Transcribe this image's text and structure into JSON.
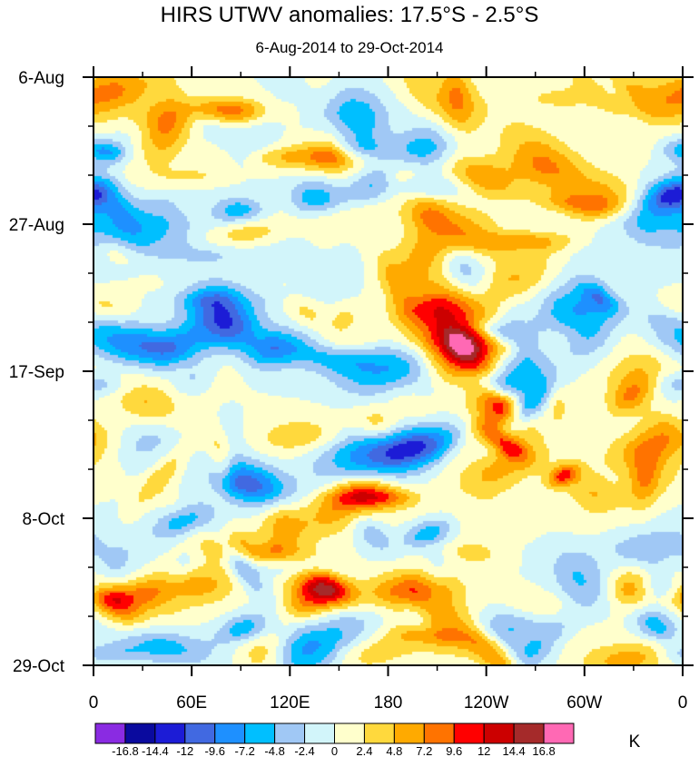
{
  "chart_data": {
    "type": "heatmap",
    "title": "HIRS UTWV anomalies: 17.5°S - 2.5°S",
    "subtitle": "6-Aug-2014 to 29-Oct-2014",
    "x_ticks": [
      "0",
      "60E",
      "120E",
      "180",
      "120W",
      "60W",
      "0"
    ],
    "x_tick_values": [
      0,
      60,
      120,
      180,
      240,
      300,
      360
    ],
    "x_range": [
      0,
      360
    ],
    "y_ticks": [
      "6-Aug",
      "27-Aug",
      "17-Sep",
      "8-Oct",
      "29-Oct"
    ],
    "y_tick_values": [
      0,
      21,
      42,
      63,
      84
    ],
    "y_range": [
      0,
      84
    ],
    "colorbar": {
      "unit": "K",
      "levels": [
        -16.8,
        -14.4,
        -12,
        -9.6,
        -7.2,
        -4.8,
        -2.4,
        0,
        2.4,
        4.8,
        7.2,
        9.6,
        12,
        14.4,
        16.8
      ],
      "level_labels": [
        "-16.8",
        "-14.4",
        "-12",
        "-9.6",
        "-7.2",
        "-4.8",
        "-2.4",
        "0",
        "2.4",
        "4.8",
        "7.2",
        "9.6",
        "12",
        "14.4",
        "16.8"
      ],
      "colors": [
        "#8a2be2",
        "#0a0a9e",
        "#1c1cd6",
        "#4169e1",
        "#1e90ff",
        "#00bfff",
        "#a0c8f5",
        "#d2f5fa",
        "#ffffcc",
        "#ffd93d",
        "#ffaa00",
        "#ff7300",
        "#ff0000",
        "#cc0000",
        "#a52a2a",
        "#ff69b4"
      ]
    },
    "field_seed": 2014
  }
}
